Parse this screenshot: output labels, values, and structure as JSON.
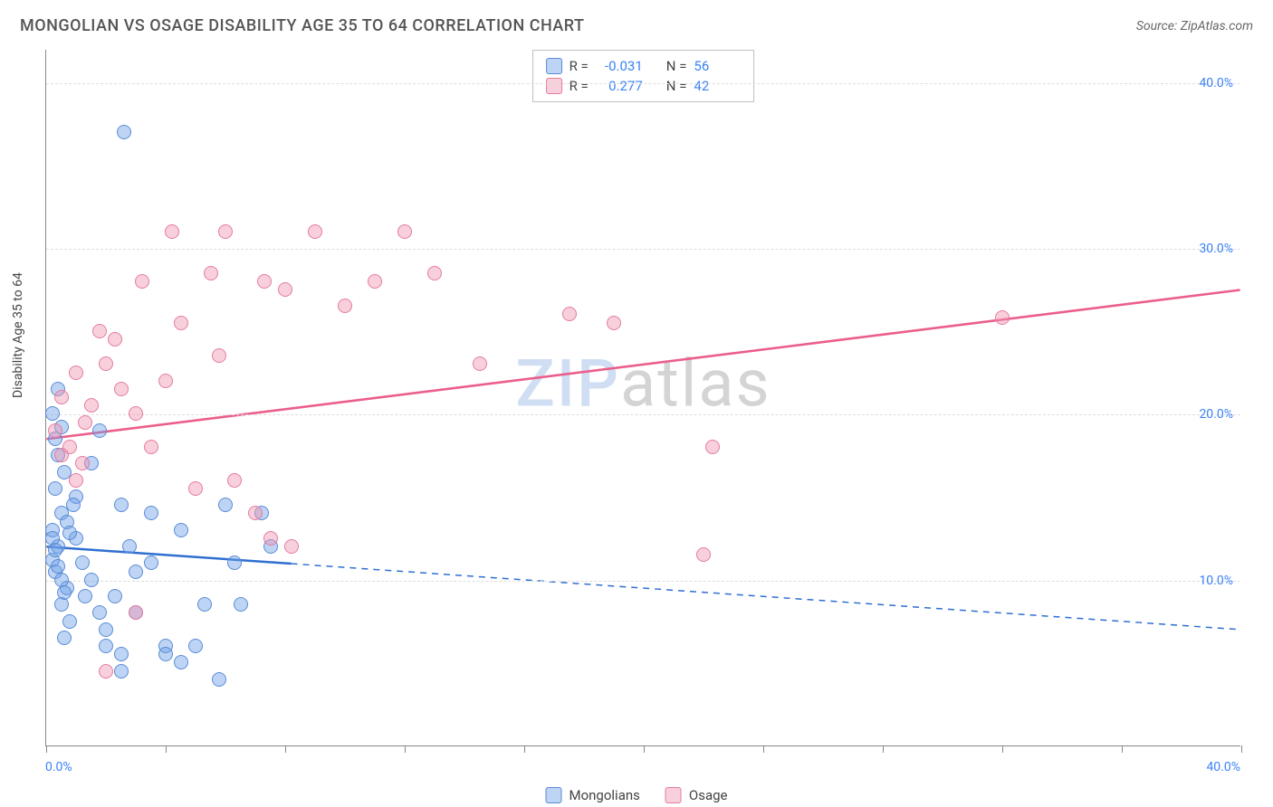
{
  "header": {
    "title": "MONGOLIAN VS OSAGE DISABILITY AGE 35 TO 64 CORRELATION CHART",
    "source": "Source: ZipAtlas.com"
  },
  "chart": {
    "type": "scatter",
    "ylabel": "Disability Age 35 to 64",
    "xlim": [
      0,
      40
    ],
    "ylim": [
      0,
      42
    ],
    "ytick_positions": [
      10,
      20,
      30,
      40
    ],
    "ytick_labels": [
      "10.0%",
      "20.0%",
      "30.0%",
      "40.0%"
    ],
    "xorigin_label": "0.0%",
    "xmax_label": "40.0%",
    "xtick_positions": [
      0,
      4,
      8,
      12,
      16,
      20,
      24,
      28,
      32,
      36,
      40
    ],
    "grid_color": "#dddddd",
    "background_color": "#ffffff",
    "axis_color": "#888888",
    "label_fontsize": 14,
    "tick_color": "#3b82f6",
    "watermark": {
      "part1": "ZIP",
      "part2": "atlas"
    },
    "series": [
      {
        "name": "Mongolians",
        "color_fill": "rgba(110,160,230,0.45)",
        "color_stroke": "#5a8cd6",
        "marker_size": 16,
        "R": "-0.031",
        "N": "56",
        "trend": {
          "x1": 0,
          "y1": 12.0,
          "x2": 40,
          "y2": 7.0,
          "solid_until_x": 8.2,
          "color": "#2f6fd0",
          "width": 2.5
        },
        "points": [
          [
            0.2,
            11.2
          ],
          [
            0.3,
            10.5
          ],
          [
            0.4,
            12.0
          ],
          [
            0.2,
            13.0
          ],
          [
            0.5,
            14.0
          ],
          [
            0.3,
            15.5
          ],
          [
            0.6,
            16.5
          ],
          [
            0.4,
            17.5
          ],
          [
            0.3,
            18.5
          ],
          [
            0.5,
            19.2
          ],
          [
            0.2,
            20.0
          ],
          [
            0.4,
            21.5
          ],
          [
            0.7,
            9.5
          ],
          [
            0.5,
            8.5
          ],
          [
            0.8,
            7.5
          ],
          [
            0.6,
            6.5
          ],
          [
            1.2,
            11.0
          ],
          [
            1.0,
            12.5
          ],
          [
            1.5,
            10.0
          ],
          [
            1.3,
            9.0
          ],
          [
            1.8,
            8.0
          ],
          [
            1.0,
            15.0
          ],
          [
            1.5,
            17.0
          ],
          [
            1.8,
            19.0
          ],
          [
            2.0,
            7.0
          ],
          [
            2.0,
            6.0
          ],
          [
            2.5,
            5.5
          ],
          [
            2.3,
            9.0
          ],
          [
            2.5,
            14.5
          ],
          [
            2.8,
            12.0
          ],
          [
            3.0,
            10.5
          ],
          [
            3.0,
            8.0
          ],
          [
            3.5,
            14.0
          ],
          [
            3.5,
            11.0
          ],
          [
            4.0,
            6.0
          ],
          [
            4.0,
            5.5
          ],
          [
            4.5,
            13.0
          ],
          [
            4.5,
            5.0
          ],
          [
            5.0,
            6.0
          ],
          [
            5.3,
            8.5
          ],
          [
            5.8,
            4.0
          ],
          [
            6.0,
            14.5
          ],
          [
            6.3,
            11.0
          ],
          [
            6.5,
            8.5
          ],
          [
            7.2,
            14.0
          ],
          [
            7.5,
            12.0
          ],
          [
            0.2,
            12.5
          ],
          [
            0.3,
            11.8
          ],
          [
            0.4,
            10.8
          ],
          [
            0.5,
            10.0
          ],
          [
            0.6,
            9.2
          ],
          [
            0.7,
            13.5
          ],
          [
            0.8,
            12.8
          ],
          [
            0.9,
            14.5
          ],
          [
            2.5,
            4.5
          ],
          [
            2.6,
            37.0
          ]
        ]
      },
      {
        "name": "Osage",
        "color_fill": "rgba(240,150,175,0.45)",
        "color_stroke": "#e57ba0",
        "marker_size": 16,
        "R": "0.277",
        "N": "42",
        "trend": {
          "x1": 0,
          "y1": 18.5,
          "x2": 40,
          "y2": 27.5,
          "solid_until_x": 40,
          "color": "#ec5e8a",
          "width": 2.5
        },
        "points": [
          [
            0.3,
            19.0
          ],
          [
            0.5,
            21.0
          ],
          [
            0.8,
            18.0
          ],
          [
            1.0,
            22.5
          ],
          [
            1.2,
            17.0
          ],
          [
            1.5,
            20.5
          ],
          [
            1.8,
            25.0
          ],
          [
            2.0,
            23.0
          ],
          [
            2.3,
            24.5
          ],
          [
            2.5,
            21.5
          ],
          [
            3.0,
            20.0
          ],
          [
            3.2,
            28.0
          ],
          [
            3.5,
            18.0
          ],
          [
            4.0,
            22.0
          ],
          [
            4.2,
            31.0
          ],
          [
            4.5,
            25.5
          ],
          [
            5.0,
            15.5
          ],
          [
            5.5,
            28.5
          ],
          [
            5.8,
            23.5
          ],
          [
            6.0,
            31.0
          ],
          [
            6.3,
            16.0
          ],
          [
            7.0,
            14.0
          ],
          [
            7.3,
            28.0
          ],
          [
            7.5,
            12.5
          ],
          [
            8.0,
            27.5
          ],
          [
            8.2,
            12.0
          ],
          [
            9.0,
            31.0
          ],
          [
            10.0,
            26.5
          ],
          [
            11.0,
            28.0
          ],
          [
            12.0,
            31.0
          ],
          [
            13.0,
            28.5
          ],
          [
            14.5,
            23.0
          ],
          [
            17.5,
            26.0
          ],
          [
            19.0,
            25.5
          ],
          [
            22.0,
            11.5
          ],
          [
            22.3,
            18.0
          ],
          [
            32.0,
            25.8
          ],
          [
            3.0,
            8.0
          ],
          [
            2.0,
            4.5
          ],
          [
            0.5,
            17.5
          ],
          [
            1.0,
            16.0
          ],
          [
            1.3,
            19.5
          ]
        ]
      }
    ]
  },
  "legend_stats": {
    "r_label": "R =",
    "n_label": "N ="
  },
  "legend_bottom": {
    "items": [
      "Mongolians",
      "Osage"
    ]
  }
}
